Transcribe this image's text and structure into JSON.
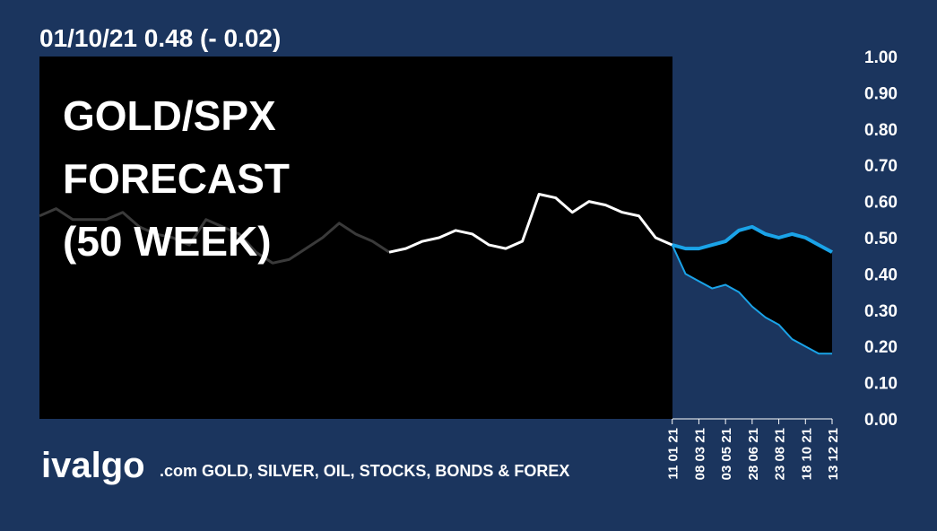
{
  "header": "01/10/21  0.48 (- 0.02)",
  "overlay_title": [
    "GOLD/SPX",
    "FORECAST",
    "(50 WEEK)"
  ],
  "brand": "ivalgo",
  "tagline": ".com GOLD, SILVER, OIL, STOCKS, BONDS & FOREX",
  "chart_data": {
    "type": "line",
    "xlim": [
      -190,
      48
    ],
    "xticks": [
      {
        "value": 0,
        "label": "11 01 21"
      },
      {
        "value": 8,
        "label": "08 03 21"
      },
      {
        "value": 16,
        "label": "03 05 21"
      },
      {
        "value": 24,
        "label": "28 06 21"
      },
      {
        "value": 32,
        "label": "23 08 21"
      },
      {
        "value": 40,
        "label": "18 10 21"
      },
      {
        "value": 48,
        "label": "13 12 21"
      }
    ],
    "ylim": [
      0,
      1
    ],
    "yticks": [
      {
        "value": 0,
        "label": "0.00"
      },
      {
        "value": 0.1,
        "label": "0.10"
      },
      {
        "value": 0.2,
        "label": "0.20"
      },
      {
        "value": 0.3,
        "label": "0.30"
      },
      {
        "value": 0.4,
        "label": "0.40"
      },
      {
        "value": 0.5,
        "label": "0.50"
      },
      {
        "value": 0.6,
        "label": "0.60"
      },
      {
        "value": 0.7,
        "label": "0.70"
      },
      {
        "value": 0.8,
        "label": "0.80"
      },
      {
        "value": 0.9,
        "label": "0.90"
      },
      {
        "value": 1,
        "label": "1.00"
      }
    ],
    "series": [
      {
        "color": "#3a3a3a",
        "line_width": 3,
        "x": [
          -190,
          -185,
          -180,
          -175,
          -170,
          -165,
          -160,
          -155,
          -150,
          -145,
          -140,
          -135,
          -130,
          -125,
          -120,
          -115,
          -110,
          -105,
          -100,
          -95,
          -90,
          -85
        ],
        "values": [
          0.56,
          0.58,
          0.55,
          0.55,
          0.55,
          0.57,
          0.53,
          0.51,
          0.5,
          0.48,
          0.55,
          0.53,
          0.51,
          0.46,
          0.43,
          0.44,
          0.47,
          0.5,
          0.54,
          0.51,
          0.49,
          0.46
        ]
      },
      {
        "color": "#ffffff",
        "line_width": 3,
        "x": [
          -85,
          -80,
          -75,
          -70,
          -65,
          -60,
          -55,
          -50,
          -45,
          -40,
          -35,
          -30,
          -25,
          -20,
          -15,
          -10,
          -5,
          0
        ],
        "values": [
          0.46,
          0.47,
          0.49,
          0.5,
          0.52,
          0.51,
          0.48,
          0.47,
          0.49,
          0.62,
          0.61,
          0.57,
          0.6,
          0.59,
          0.57,
          0.56,
          0.5,
          0.48
        ]
      },
      {
        "color": "#1aa3e8",
        "line_width": 4,
        "x": [
          0,
          4,
          8,
          12,
          16,
          20,
          24,
          28,
          32,
          36,
          40,
          44,
          48
        ],
        "values": [
          0.48,
          0.47,
          0.47,
          0.48,
          0.49,
          0.52,
          0.53,
          0.51,
          0.5,
          0.51,
          0.5,
          0.48,
          0.46
        ]
      },
      {
        "color": "#1aa3e8",
        "line_width": 2,
        "x": [
          0,
          4,
          8,
          12,
          16,
          20,
          24,
          28,
          32,
          36,
          40,
          44,
          48
        ],
        "values": [
          0.48,
          0.4,
          0.38,
          0.36,
          0.37,
          0.35,
          0.31,
          0.28,
          0.26,
          0.22,
          0.2,
          0.18,
          0.18
        ]
      }
    ]
  }
}
